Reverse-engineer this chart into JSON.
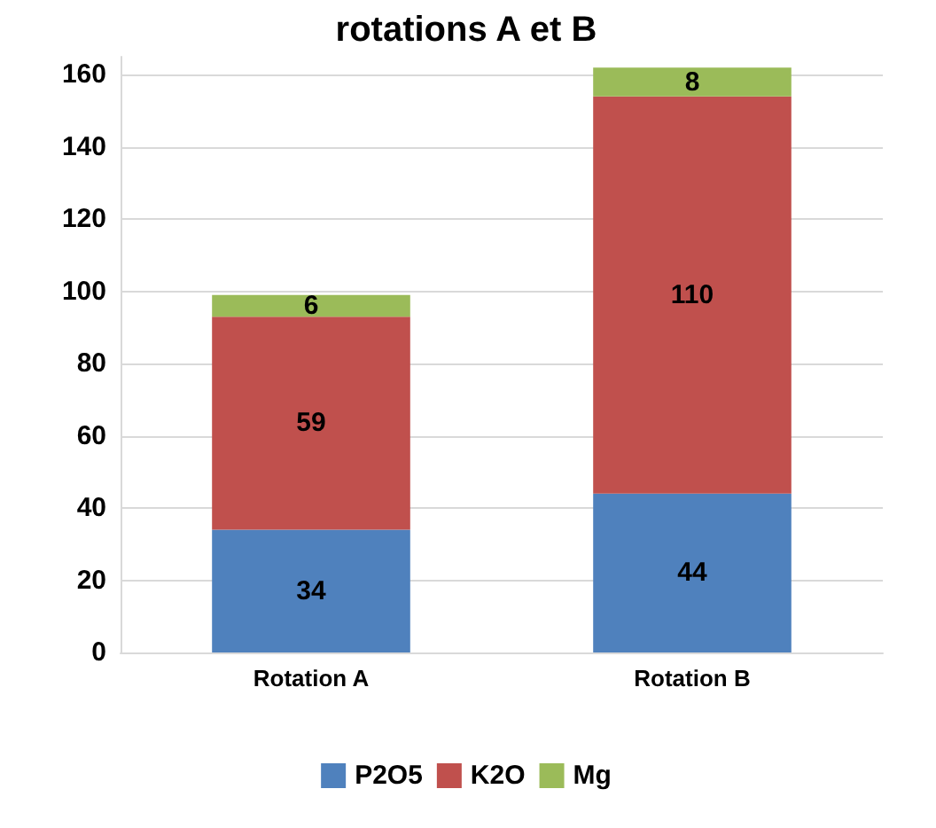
{
  "chart_data": {
    "type": "bar",
    "title": "rotations A et B",
    "categories": [
      "Rotation A",
      "Rotation B"
    ],
    "stacked": true,
    "series": [
      {
        "name": "P2O5",
        "color": "#4f81bd",
        "values": [
          34,
          44
        ]
      },
      {
        "name": "K2O",
        "color": "#c0504d",
        "values": [
          59,
          110
        ]
      },
      {
        "name": "Mg",
        "color": "#9bbb59",
        "values": [
          6,
          8
        ]
      }
    ],
    "ylim": [
      0,
      165
    ],
    "yticks": [
      0,
      20,
      40,
      60,
      80,
      100,
      120,
      140,
      160
    ],
    "grid": "y",
    "legend": "bottom",
    "data_labels": true
  }
}
